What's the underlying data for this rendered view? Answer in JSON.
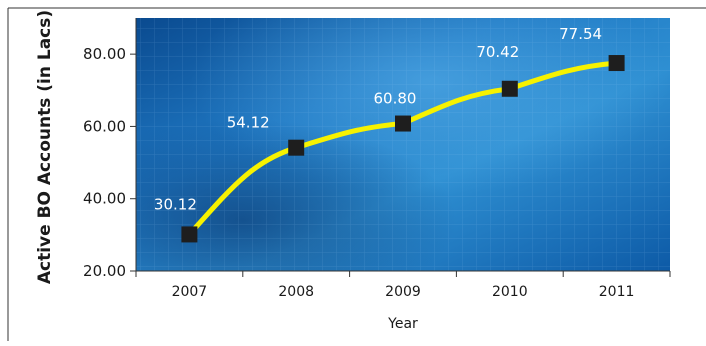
{
  "chart_data": {
    "type": "line",
    "title": "",
    "xlabel": "Year",
    "ylabel": "Active BO Accounts (in Lacs)",
    "categories": [
      "2007",
      "2008",
      "2009",
      "2010",
      "2011"
    ],
    "series": [
      {
        "values": [
          30.12,
          54.12,
          60.8,
          70.42,
          77.54
        ],
        "labels": [
          "30.12",
          "54.12",
          "60.80",
          "70.42",
          "77.54"
        ]
      }
    ],
    "y_ticks": [
      "20.00",
      "40.00",
      "60.00",
      "80.00"
    ],
    "ylim": [
      20,
      90
    ],
    "grid": false,
    "legend": "none",
    "colors": {
      "line": "#f7f200",
      "marker": "#1e1e1e",
      "label": "#ffffff",
      "background_dark": "#0b4f97",
      "background_light": "#2f8fd0"
    }
  }
}
